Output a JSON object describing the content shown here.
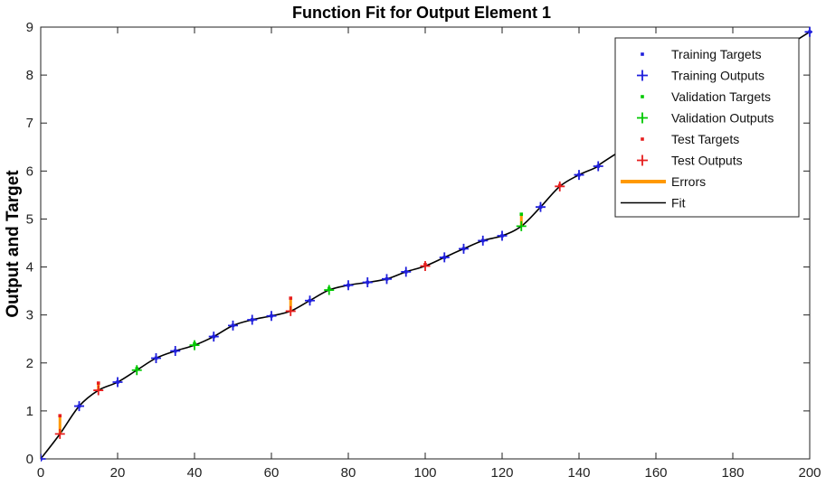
{
  "chart_data": {
    "type": "scatter",
    "title": "Function Fit for Output Element 1",
    "xlabel": "",
    "ylabel": "Output and Target",
    "xlim": [
      0,
      200
    ],
    "ylim": [
      0,
      9
    ],
    "xticks": [
      0,
      20,
      40,
      60,
      80,
      100,
      120,
      140,
      160,
      180,
      200
    ],
    "yticks": [
      0,
      1,
      2,
      3,
      4,
      5,
      6,
      7,
      8,
      9
    ],
    "grid": false,
    "legend_position": "top-right",
    "legend": [
      "Training Targets",
      "Training Outputs",
      "Validation Targets",
      "Validation Outputs",
      "Test Targets",
      "Test Outputs",
      "Errors",
      "Fit"
    ],
    "colors": {
      "training": "#1f1fdc",
      "validation": "#00c800",
      "test": "#e61e1e",
      "errors": "#ff9900",
      "fit": "#000000"
    },
    "series": [
      {
        "name": "Training Targets",
        "x": [
          0,
          10,
          20,
          30,
          35,
          45,
          50,
          55,
          60,
          70,
          80,
          85,
          90,
          95,
          105,
          110,
          115,
          120,
          130,
          140,
          145,
          200
        ],
        "y": [
          0.0,
          1.1,
          1.6,
          2.1,
          2.25,
          2.55,
          2.78,
          2.9,
          2.98,
          3.3,
          3.62,
          3.68,
          3.75,
          3.9,
          4.2,
          4.38,
          4.55,
          4.65,
          5.25,
          5.92,
          6.1,
          8.9
        ]
      },
      {
        "name": "Training Outputs",
        "x": [
          0,
          10,
          20,
          30,
          35,
          45,
          50,
          55,
          60,
          70,
          80,
          85,
          90,
          95,
          105,
          110,
          115,
          120,
          130,
          140,
          145,
          200
        ],
        "y": [
          0.0,
          1.1,
          1.6,
          2.1,
          2.25,
          2.55,
          2.78,
          2.9,
          2.98,
          3.3,
          3.62,
          3.68,
          3.75,
          3.9,
          4.2,
          4.38,
          4.55,
          4.65,
          5.25,
          5.92,
          6.1,
          8.9
        ]
      },
      {
        "name": "Validation Targets",
        "x": [
          25,
          40,
          75,
          125
        ],
        "y": [
          1.88,
          2.4,
          3.55,
          5.1
        ]
      },
      {
        "name": "Validation Outputs",
        "x": [
          25,
          40,
          75,
          125
        ],
        "y": [
          1.85,
          2.37,
          3.52,
          4.85
        ]
      },
      {
        "name": "Test Targets",
        "x": [
          5,
          15,
          65,
          100,
          135
        ],
        "y": [
          0.9,
          1.58,
          3.35,
          4.05,
          5.7
        ]
      },
      {
        "name": "Test Outputs",
        "x": [
          5,
          15,
          65,
          100,
          135
        ],
        "y": [
          0.52,
          1.43,
          3.08,
          4.02,
          5.68
        ]
      },
      {
        "name": "Fit",
        "x": [
          0,
          5,
          10,
          15,
          20,
          25,
          30,
          35,
          40,
          45,
          50,
          55,
          60,
          65,
          70,
          75,
          80,
          85,
          90,
          95,
          100,
          105,
          110,
          115,
          120,
          125,
          130,
          135,
          140,
          145,
          150,
          200
        ],
        "y": [
          0.0,
          0.52,
          1.1,
          1.43,
          1.6,
          1.85,
          2.1,
          2.25,
          2.37,
          2.55,
          2.78,
          2.9,
          2.98,
          3.08,
          3.3,
          3.52,
          3.62,
          3.68,
          3.75,
          3.9,
          4.02,
          4.2,
          4.38,
          4.55,
          4.65,
          4.85,
          5.25,
          5.68,
          5.92,
          6.1,
          6.38,
          8.9
        ]
      }
    ]
  }
}
